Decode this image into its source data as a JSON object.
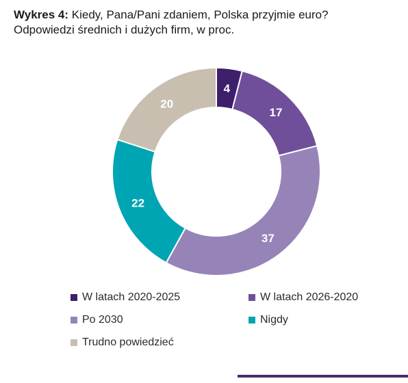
{
  "title": {
    "prefix": "Wykres 4:",
    "question": "Kiedy, Pana/Pani zdaniem, Polska przyjmie euro?",
    "subtitle": "Odpowiedzi średnich i dużych firm, w proc."
  },
  "chart_data": {
    "type": "pie",
    "donut": true,
    "title": "Kiedy, Pana/Pani zdaniem, Polska przyjmie euro?",
    "subtitle": "Odpowiedzi średnich i dużych firm, w proc.",
    "slices": [
      {
        "label": "W latach 2020-2025",
        "value": 4,
        "color": "#3e1f6b"
      },
      {
        "label": "W latach 2026-2020",
        "value": 17,
        "color": "#6f4f9a"
      },
      {
        "label": "Po 2030",
        "value": 37,
        "color": "#9684b8"
      },
      {
        "label": "Nigdy",
        "value": 22,
        "color": "#00a5b3"
      },
      {
        "label": "Trudno powiedzieć",
        "value": 20,
        "color": "#c8bfb0"
      }
    ],
    "legend_position": "bottom"
  }
}
